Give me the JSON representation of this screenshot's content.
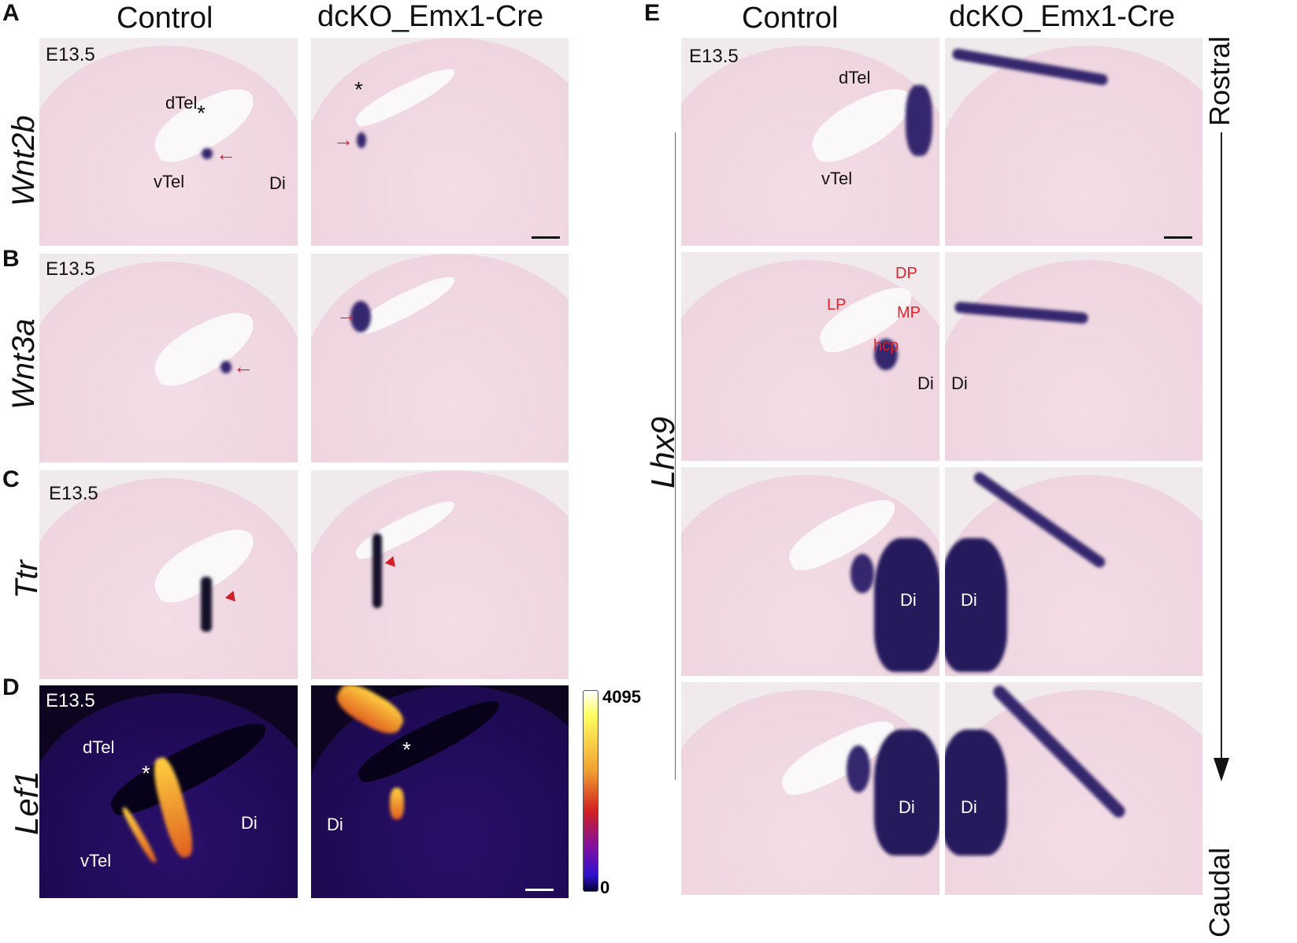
{
  "panel_letters": {
    "a": "A",
    "b": "B",
    "c": "C",
    "d": "D",
    "e": "E"
  },
  "column_headers": {
    "left_control": "Control",
    "left_mutant": "dcKO_Emx1-Cre",
    "right_control": "Control",
    "right_mutant": "dcKO_Emx1-Cre"
  },
  "genes": {
    "a": "Wnt2b",
    "b": "Wnt3a",
    "c": "Ttr",
    "d": "Lef1",
    "e": "Lhx9"
  },
  "stage": "E13.5",
  "regions": {
    "dtel": "dTel",
    "vtel": "vTel",
    "di": "Di",
    "asterisk": "*",
    "lp": "LP",
    "dp": "DP",
    "mp": "MP",
    "hcp": "hcp"
  },
  "colorbar": {
    "max": "4095",
    "min": "0",
    "colormap": "fire"
  },
  "axis": {
    "top": "Rostral",
    "bottom": "Caudal"
  },
  "colors": {
    "stain": "#35276e",
    "annotation_red": "#e0202a",
    "tissue_pink": "#efd5e0"
  }
}
